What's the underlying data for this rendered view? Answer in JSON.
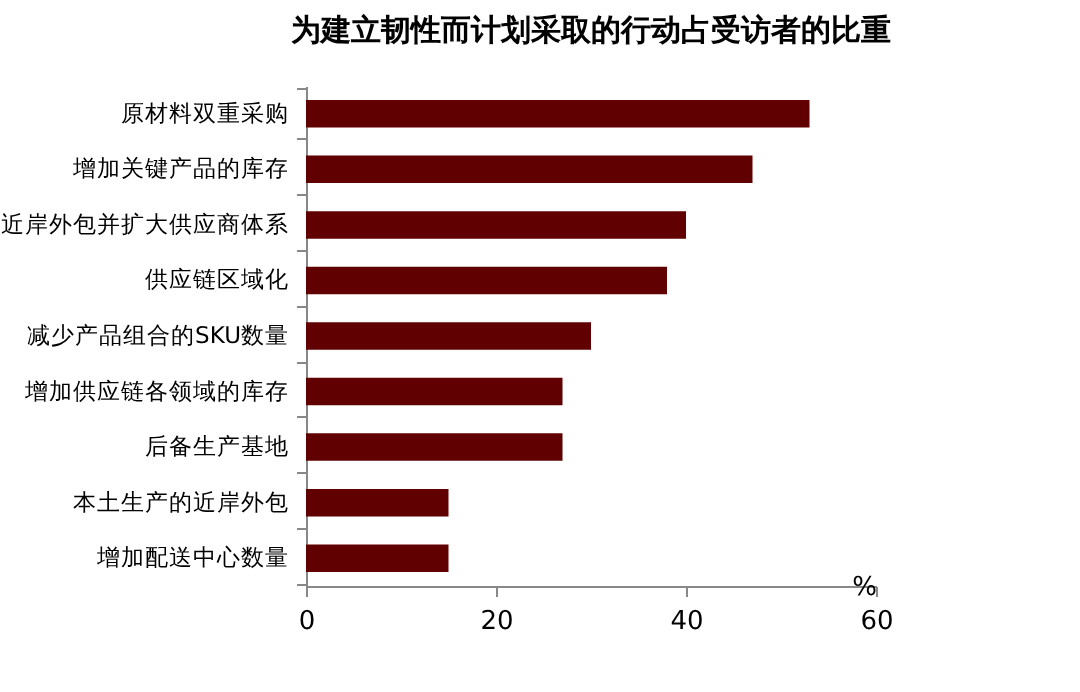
{
  "chart_data": {
    "type": "bar",
    "orientation": "horizontal",
    "title": "为建立韧性而计划采取的行动占受访者的比重",
    "categories": [
      "原材料双重采购",
      "增加关键产品的库存",
      "近岸外包并扩大供应商体系",
      "供应链区域化",
      "减少产品组合的SKU数量",
      "增加供应链各领域的库存",
      "后备生产基地",
      "本土生产的近岸外包",
      "增加配送中心数量"
    ],
    "values": [
      53,
      47,
      40,
      38,
      30,
      27,
      27,
      15,
      15
    ],
    "color": "#600000",
    "xlabel": "%",
    "xlim": [
      0,
      60
    ],
    "xticks": [
      0,
      20,
      40,
      60
    ],
    "grid": false
  }
}
